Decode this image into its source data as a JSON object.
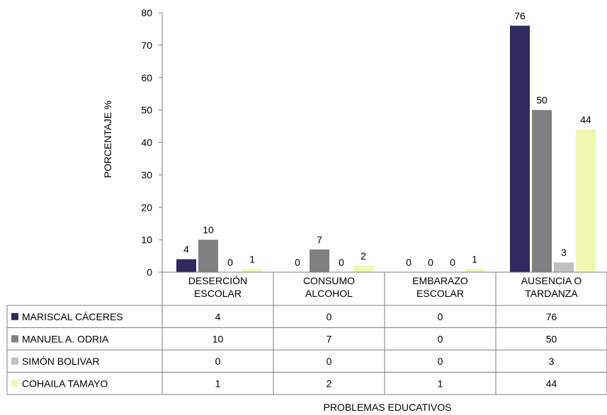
{
  "chart_data": {
    "type": "bar",
    "ylabel": "PORCENTAJE  %",
    "xlabel": "PROBLEMAS EDUCATIVOS",
    "ylim": [
      0,
      80
    ],
    "yticks": [
      0,
      10,
      20,
      30,
      40,
      50,
      60,
      70,
      80
    ],
    "grid": false,
    "legend": "data-table",
    "categories": [
      [
        "DESERCIÓN",
        "ESCOLAR"
      ],
      [
        "CONSUMO",
        "ALCOHOL"
      ],
      [
        "EMBARAZO",
        "ESCOLAR"
      ],
      [
        "AUSENCIA O",
        "TARDANZA"
      ]
    ],
    "series": [
      {
        "name": "MARISCAL CÁCERES",
        "color": "#2e2a5e",
        "values": [
          4,
          0,
          0,
          76
        ]
      },
      {
        "name": "MANUEL A. ODRIA",
        "color": "#808080",
        "values": [
          10,
          7,
          0,
          50
        ]
      },
      {
        "name": "SIMÓN BOLIVAR",
        "color": "#c0c0c0",
        "values": [
          0,
          0,
          0,
          3
        ]
      },
      {
        "name": "COHAILA TAMAYO",
        "color": "#eef8b0",
        "values": [
          1,
          2,
          1,
          44
        ]
      }
    ]
  }
}
